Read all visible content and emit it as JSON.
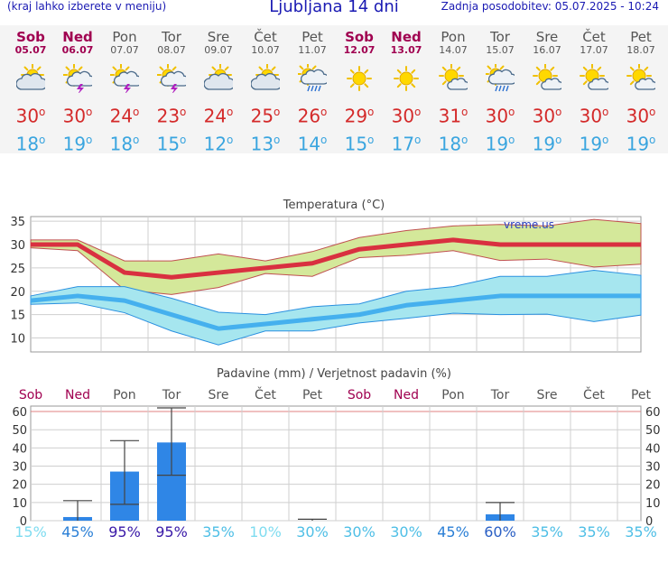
{
  "header": {
    "menu_hint": "(kraj lahko izberete v meniju)",
    "title": "Ljubljana 14 dni",
    "updated": "Zadnja posodobitev: 05.07.2025 - 10:24"
  },
  "days": [
    {
      "name": "Sob",
      "date": "05.07",
      "weekend": true,
      "icon": "partly-cloudy-sun-icon",
      "tmax": "30",
      "tmin": "18",
      "prob": "15%",
      "prob_color": "#7fdcf0"
    },
    {
      "name": "Ned",
      "date": "06.07",
      "weekend": true,
      "icon": "sun-thunderstorm-icon",
      "tmax": "30",
      "tmin": "19",
      "prob": "45%",
      "prob_color": "#2a7fd6"
    },
    {
      "name": "Pon",
      "date": "07.07",
      "weekend": false,
      "icon": "sun-thunderstorm-icon",
      "tmax": "24",
      "tmin": "18",
      "prob": "95%",
      "prob_color": "#3a1aa8"
    },
    {
      "name": "Tor",
      "date": "08.07",
      "weekend": false,
      "icon": "sun-thunderstorm-icon",
      "tmax": "23",
      "tmin": "15",
      "prob": "95%",
      "prob_color": "#3a1aa8"
    },
    {
      "name": "Sre",
      "date": "09.07",
      "weekend": false,
      "icon": "partly-cloudy-sun-icon",
      "tmax": "24",
      "tmin": "12",
      "prob": "35%",
      "prob_color": "#4fbfe6"
    },
    {
      "name": "Čet",
      "date": "10.07",
      "weekend": false,
      "icon": "partly-cloudy-sun-icon",
      "tmax": "25",
      "tmin": "13",
      "prob": "10%",
      "prob_color": "#7fdcf0"
    },
    {
      "name": "Pet",
      "date": "11.07",
      "weekend": false,
      "icon": "sun-cloud-rain-icon",
      "tmax": "26",
      "tmin": "14",
      "prob": "30%",
      "prob_color": "#4fbfe6"
    },
    {
      "name": "Sob",
      "date": "12.07",
      "weekend": true,
      "icon": "sun-icon",
      "tmax": "29",
      "tmin": "15",
      "prob": "30%",
      "prob_color": "#4fbfe6"
    },
    {
      "name": "Ned",
      "date": "13.07",
      "weekend": true,
      "icon": "sun-icon",
      "tmax": "30",
      "tmin": "17",
      "prob": "30%",
      "prob_color": "#4fbfe6"
    },
    {
      "name": "Pon",
      "date": "14.07",
      "weekend": false,
      "icon": "sun-small-cloud-icon",
      "tmax": "31",
      "tmin": "18",
      "prob": "45%",
      "prob_color": "#2a7fd6"
    },
    {
      "name": "Tor",
      "date": "15.07",
      "weekend": false,
      "icon": "sun-cloud-rain-icon",
      "tmax": "30",
      "tmin": "19",
      "prob": "60%",
      "prob_color": "#2a5fc4"
    },
    {
      "name": "Sre",
      "date": "16.07",
      "weekend": false,
      "icon": "sun-small-cloud-icon",
      "tmax": "30",
      "tmin": "19",
      "prob": "35%",
      "prob_color": "#4fbfe6"
    },
    {
      "name": "Čet",
      "date": "17.07",
      "weekend": false,
      "icon": "sun-small-cloud-icon",
      "tmax": "30",
      "tmin": "19",
      "prob": "35%",
      "prob_color": "#4fbfe6"
    },
    {
      "name": "Pet",
      "date": "18.07",
      "weekend": false,
      "icon": "sun-small-cloud-icon",
      "tmax": "30",
      "tmin": "19",
      "prob": "35%",
      "prob_color": "#4fbfe6"
    }
  ],
  "colors": {
    "weekday": "#555555",
    "weekend": "#a00050",
    "tmax": "#d42a2a",
    "tmin": "#3aa5df",
    "tmax_band": "#d4e89a",
    "tmin_band": "#a6e6ef",
    "bar": "#2f86e6"
  },
  "chart_data": [
    {
      "type": "line",
      "title": "Temperatura (°C)",
      "watermark": "vreme.us",
      "x": [
        "Sob",
        "Ned",
        "Pon",
        "Tor",
        "Sre",
        "Čet",
        "Pet",
        "Sob",
        "Ned",
        "Pon",
        "Tor",
        "Sre",
        "Čet",
        "Pet"
      ],
      "ylim": [
        7,
        36
      ],
      "yticks": [
        10,
        15,
        20,
        25,
        30,
        35
      ],
      "grid": true,
      "series": [
        {
          "values": [
            30,
            30,
            24,
            23,
            24,
            25,
            26,
            29,
            30,
            31,
            30,
            30,
            30,
            30
          ]
        },
        {
          "values": [
            31,
            31,
            26.5,
            26.5,
            28,
            26.5,
            28.5,
            31.5,
            33,
            34,
            34.3,
            34,
            35.4,
            34.5
          ]
        },
        {
          "values": [
            29.3,
            28.7,
            20.3,
            19.3,
            20.8,
            23.8,
            23.2,
            27.2,
            27.7,
            28.7,
            26.6,
            26.9,
            25.2,
            25.8
          ]
        },
        {
          "values": [
            18,
            19,
            18,
            15,
            12,
            13,
            14,
            15,
            17,
            18,
            19,
            19,
            19,
            19
          ]
        },
        {
          "values": [
            19,
            21,
            21,
            18.5,
            15.5,
            15,
            16.7,
            17.3,
            20,
            21,
            23.2,
            23.2,
            24.5,
            23.4
          ]
        },
        {
          "values": [
            17.2,
            17.5,
            15.4,
            11.5,
            8.5,
            11.5,
            11.5,
            13.2,
            14.2,
            15.3,
            15,
            15.1,
            13.5,
            14.9
          ]
        }
      ]
    },
    {
      "type": "bar",
      "title": "Padavine (mm) / Verjetnost padavin (%)",
      "categories": [
        "Sob",
        "Ned",
        "Pon",
        "Tor",
        "Sre",
        "Čet",
        "Pet",
        "Sob",
        "Ned",
        "Pon",
        "Tor",
        "Sre",
        "Čet",
        "Pet"
      ],
      "ylim": [
        0,
        63
      ],
      "yticks": [
        0,
        10,
        20,
        30,
        40,
        50,
        60
      ],
      "grid": true,
      "values": [
        0,
        2,
        27,
        43,
        0,
        0,
        0,
        0,
        0,
        0,
        3.5,
        0,
        0,
        0
      ],
      "range_low": [
        0,
        0,
        9,
        25,
        0,
        0,
        0,
        0,
        0,
        0,
        0,
        0,
        0,
        0
      ],
      "range_high": [
        0,
        11,
        44,
        62,
        0,
        0,
        0.8,
        0,
        0,
        0,
        10,
        0,
        0,
        0
      ],
      "probability": [
        "15%",
        "45%",
        "95%",
        "95%",
        "35%",
        "10%",
        "30%",
        "30%",
        "30%",
        "45%",
        "60%",
        "35%",
        "35%",
        "35%"
      ]
    }
  ]
}
